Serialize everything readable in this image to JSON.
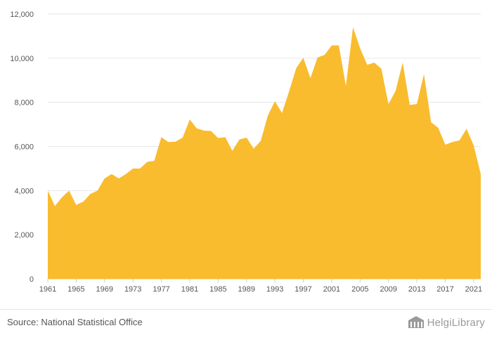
{
  "chart_data": {
    "type": "area",
    "x": [
      1961,
      1962,
      1963,
      1964,
      1965,
      1966,
      1967,
      1968,
      1969,
      1970,
      1971,
      1972,
      1973,
      1974,
      1975,
      1976,
      1977,
      1978,
      1979,
      1980,
      1981,
      1982,
      1983,
      1984,
      1985,
      1986,
      1987,
      1988,
      1989,
      1990,
      1991,
      1992,
      1993,
      1994,
      1995,
      1996,
      1997,
      1998,
      1999,
      2000,
      2001,
      2002,
      2003,
      2004,
      2005,
      2006,
      2007,
      2008,
      2009,
      2010,
      2011,
      2012,
      2013,
      2014,
      2015,
      2016,
      2017,
      2018,
      2019,
      2020,
      2021,
      2022
    ],
    "series": [
      {
        "values": [
          4000,
          3300,
          3700,
          4000,
          3350,
          3500,
          3850,
          4000,
          4550,
          4750,
          4550,
          4750,
          5000,
          5000,
          5300,
          5350,
          6420,
          6200,
          6220,
          6400,
          7220,
          6820,
          6720,
          6700,
          6380,
          6420,
          5800,
          6320,
          6400,
          5900,
          6250,
          7400,
          8050,
          7520,
          8500,
          9550,
          10020,
          9100,
          10030,
          10150,
          10580,
          10580,
          8750,
          11400,
          10450,
          9700,
          9800,
          9520,
          7920,
          8520,
          9800,
          7880,
          7920,
          9280,
          7100,
          6850,
          6080,
          6200,
          6280,
          6800,
          6050,
          4750
        ]
      }
    ],
    "xticks": [
      "1961",
      "1965",
      "1969",
      "1973",
      "1977",
      "1981",
      "1985",
      "1989",
      "1993",
      "1997",
      "2001",
      "2005",
      "2009",
      "2013",
      "2017",
      "2021"
    ],
    "yticks": [
      "0",
      "2,000",
      "4,000",
      "6,000",
      "8,000",
      "10,000",
      "12,000"
    ],
    "ylim": [
      0,
      12000
    ],
    "xlim": [
      1961,
      2022
    ],
    "color": "#F9BC2F",
    "grid": true
  },
  "footer": {
    "source": "Source: National Statistical Office",
    "brand": "HelgiLibrary",
    "brand_icon": "building-icon"
  }
}
